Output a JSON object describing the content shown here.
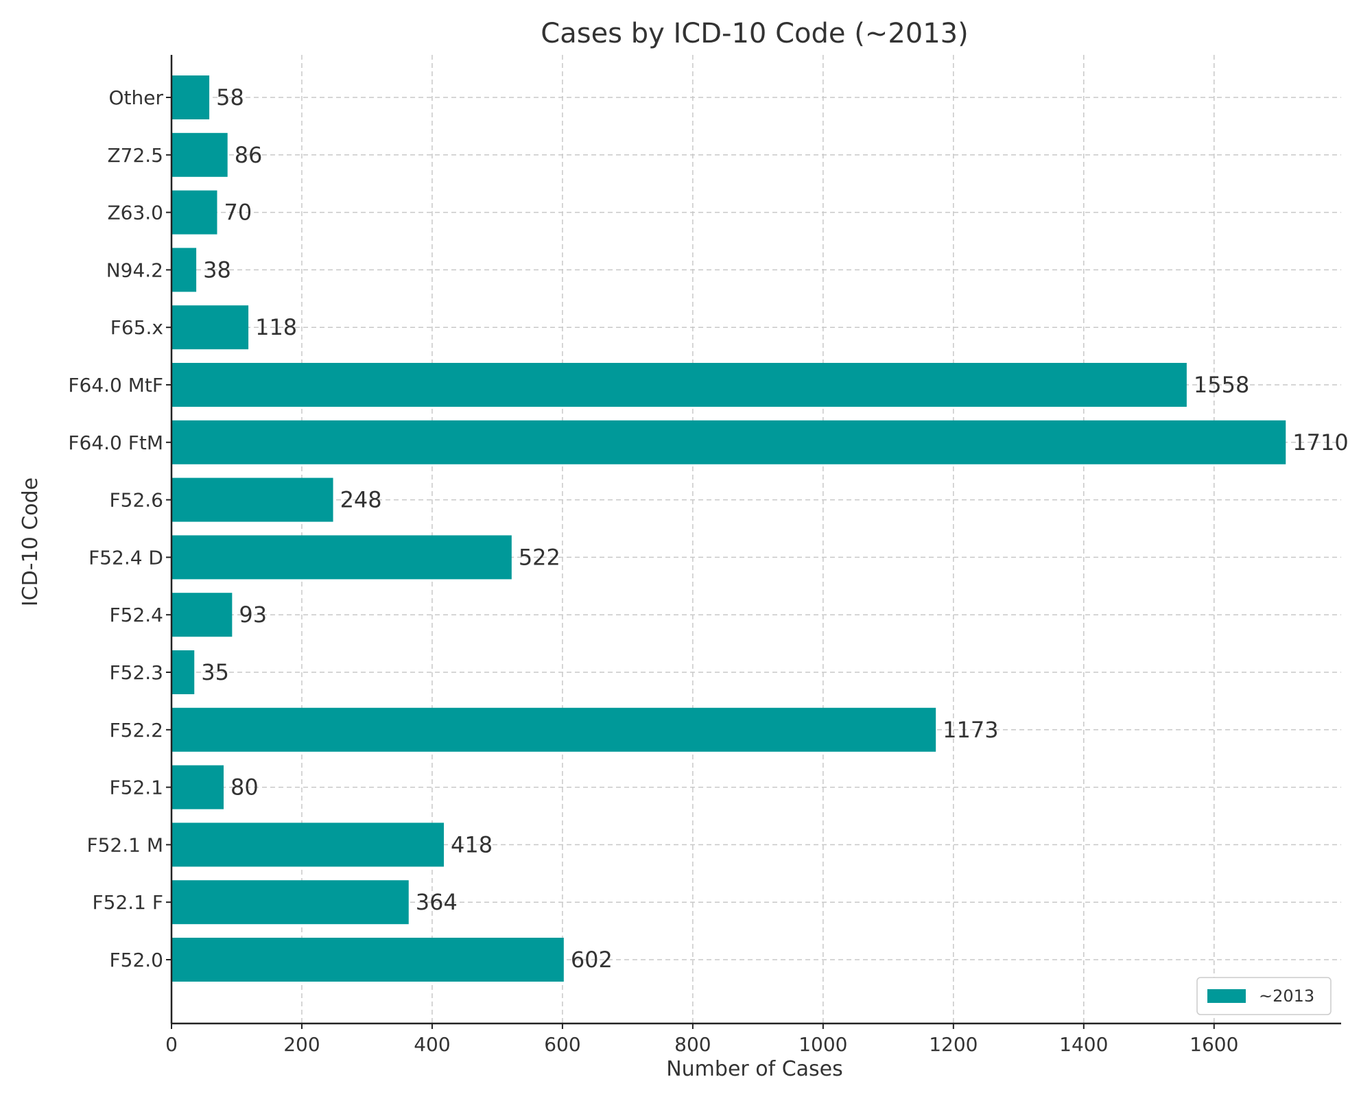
{
  "chart_data": {
    "type": "bar",
    "orientation": "horizontal",
    "title": "Cases by ICD-10 Code (~2013)",
    "xlabel": "Number of Cases",
    "ylabel": "ICD-10 Code",
    "categories": [
      "F52.0",
      "F52.1 F",
      "F52.1 M",
      "F52.1",
      "F52.2",
      "F52.3",
      "F52.4",
      "F52.4 D",
      "F52.6",
      "F64.0 FtM",
      "F64.0 MtF",
      "F65.x",
      "N94.2",
      "Z63.0",
      "Z72.5",
      "Other"
    ],
    "series": [
      {
        "name": "~2013",
        "color": "#009999",
        "values": [
          602,
          364,
          418,
          80,
          1173,
          35,
          93,
          522,
          248,
          1710,
          1558,
          118,
          38,
          70,
          86,
          58
        ]
      }
    ],
    "xlim": [
      0,
      1795
    ],
    "xticks": [
      "0",
      "200",
      "400",
      "600",
      "800",
      "1000",
      "1200",
      "1400",
      "1600"
    ],
    "grid": true,
    "legend_position": "lower-right"
  }
}
